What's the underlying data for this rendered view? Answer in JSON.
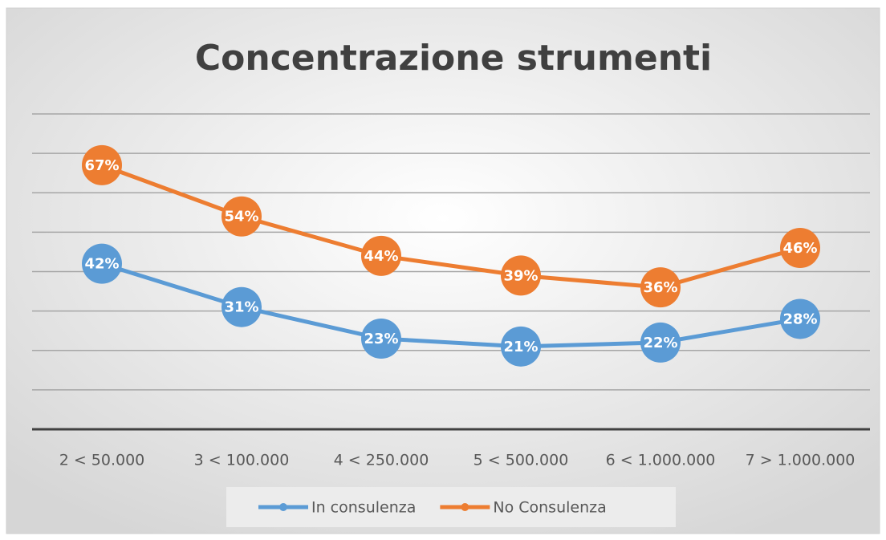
{
  "chart_data": {
    "type": "line",
    "title": "Concentrazione strumenti",
    "categories": [
      "2 < 50.000",
      "3 < 100.000",
      "4 < 250.000",
      "5 < 500.000",
      "6 < 1.000.000",
      "7 > 1.000.000"
    ],
    "series": [
      {
        "name": "In consulenza",
        "color": "#5b9bd5",
        "values": [
          42,
          31,
          23,
          21,
          22,
          28
        ],
        "value_labels": [
          "42%",
          "31%",
          "23%",
          "21%",
          "22%",
          "28%"
        ]
      },
      {
        "name": "No Consulenza",
        "color": "#ed7d31",
        "values": [
          67,
          54,
          44,
          39,
          36,
          46
        ],
        "value_labels": [
          "67%",
          "54%",
          "44%",
          "39%",
          "36%",
          "46%"
        ]
      }
    ],
    "ylim": [
      0,
      80
    ],
    "yticks": [
      0,
      10,
      20,
      30,
      40,
      50,
      60,
      70,
      80
    ],
    "grid": true,
    "legend": "bottom"
  }
}
